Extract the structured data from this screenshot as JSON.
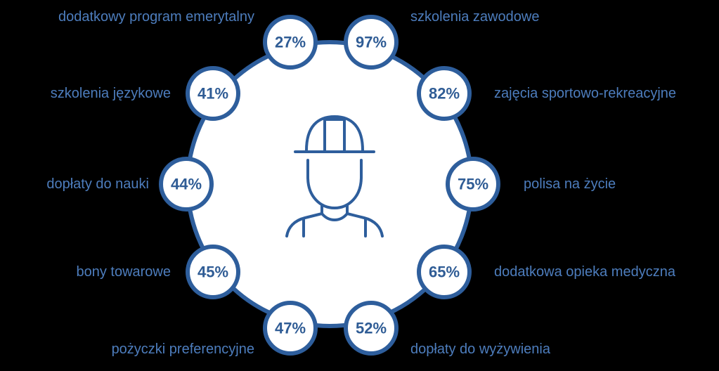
{
  "items": [
    {
      "label": "dodatkowy program emerytalny",
      "value": "27%"
    },
    {
      "label": "szkolenia zawodowe",
      "value": "97%"
    },
    {
      "label": "zajęcia sportowo-rekreacyjne",
      "value": "82%"
    },
    {
      "label": "polisa na życie",
      "value": "75%"
    },
    {
      "label": "dodatkowa opieka medyczna",
      "value": "65%"
    },
    {
      "label": "dopłaty do wyżywienia",
      "value": "52%"
    },
    {
      "label": "pożyczki preferencyjne",
      "value": "47%"
    },
    {
      "label": "bony towarowe",
      "value": "45%"
    },
    {
      "label": "dopłaty do nauki",
      "value": "44%"
    },
    {
      "label": "szkolenia językowe",
      "value": "41%"
    }
  ]
}
